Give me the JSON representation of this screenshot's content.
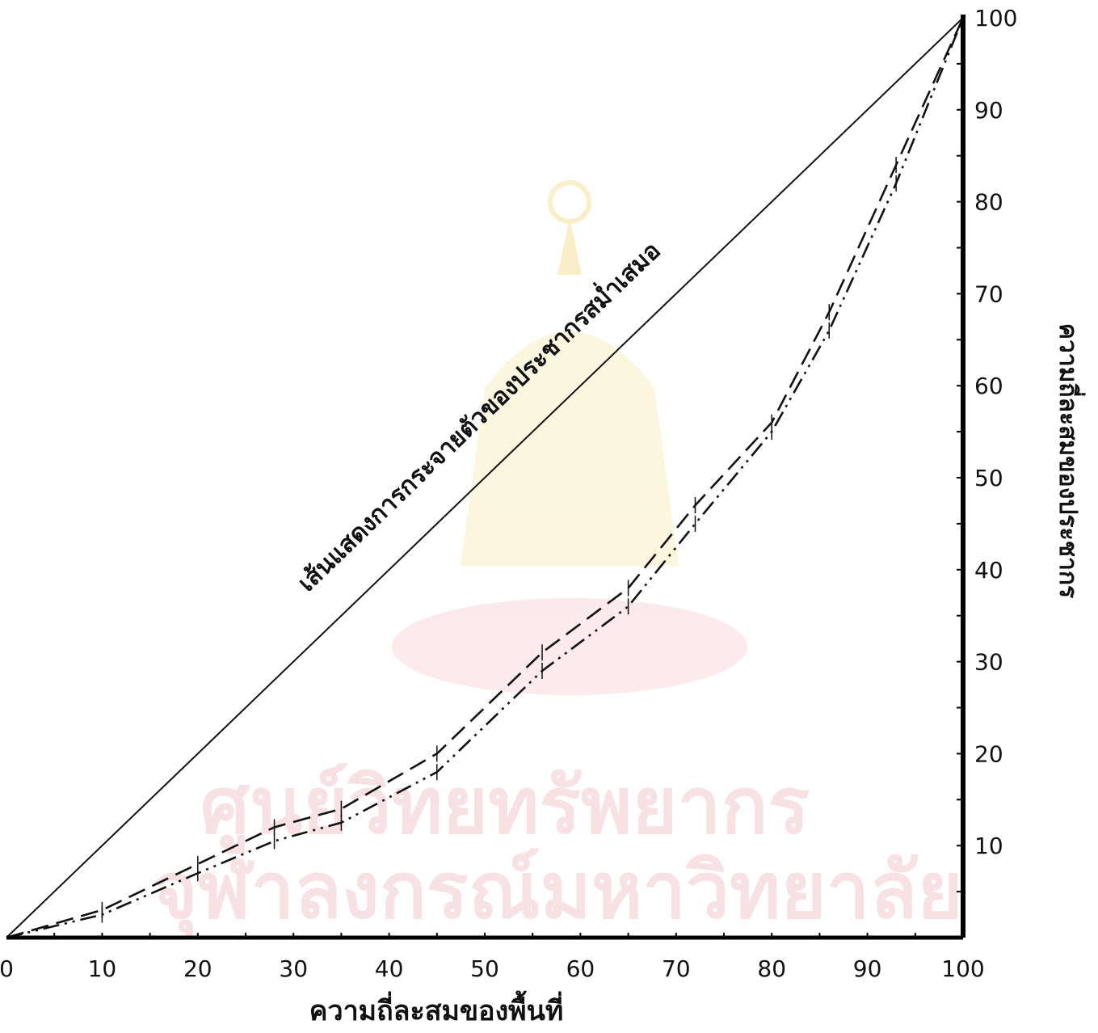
{
  "chart_data": {
    "type": "line",
    "title": "",
    "xlabel": "ความถี่ละสมของพื้นที่",
    "ylabel": "ความถี่ละสมของประชากร",
    "xlim": [
      0,
      100
    ],
    "ylim": [
      0,
      100
    ],
    "x_ticks": [
      0,
      10,
      20,
      30,
      40,
      50,
      60,
      70,
      80,
      90,
      100
    ],
    "x_tick_labels": [
      "0",
      "10",
      "20",
      "30",
      "40",
      "50",
      "60",
      "70",
      "80",
      "90",
      "100"
    ],
    "y_ticks": [
      10,
      20,
      30,
      40,
      50,
      60,
      70,
      80,
      90,
      100
    ],
    "y_tick_labels": [
      "10",
      "20",
      "30",
      "40",
      "50",
      "60",
      "70",
      "80",
      "90",
      "100"
    ],
    "y_axis_position": "right",
    "grid": false,
    "series": [
      {
        "name": "เส้นแสดงการกระจายตัวของประชากรสม่ำเสมอ",
        "style": "solid",
        "x": [
          0,
          100
        ],
        "y": [
          0,
          100
        ]
      },
      {
        "name": "",
        "style": "dash",
        "x": [
          0,
          10,
          20,
          28,
          35,
          45,
          56,
          65,
          72,
          80,
          86,
          93,
          100
        ],
        "y": [
          0,
          3,
          8,
          12,
          14,
          20,
          31,
          38,
          47,
          56,
          68,
          84,
          100
        ]
      },
      {
        "name": "",
        "style": "dash-dot-dot",
        "x": [
          0,
          10,
          20,
          28,
          35,
          45,
          56,
          65,
          72,
          80,
          86,
          93,
          100
        ],
        "y": [
          0,
          2.5,
          7,
          10.5,
          12.5,
          18,
          29,
          36,
          45,
          55,
          66,
          82,
          100
        ]
      }
    ],
    "annotations": [
      {
        "text": "เส้นแสดงการกระจายตัวของประชากรสม่ำเสมอ",
        "along_series": 0
      }
    ],
    "watermark": {
      "line1": "ศูนย์วิทยทรัพยากร",
      "line2": "จุฬาลงกรณ์มหาวิทยาลัย",
      "color": "#f2c9cc"
    }
  }
}
